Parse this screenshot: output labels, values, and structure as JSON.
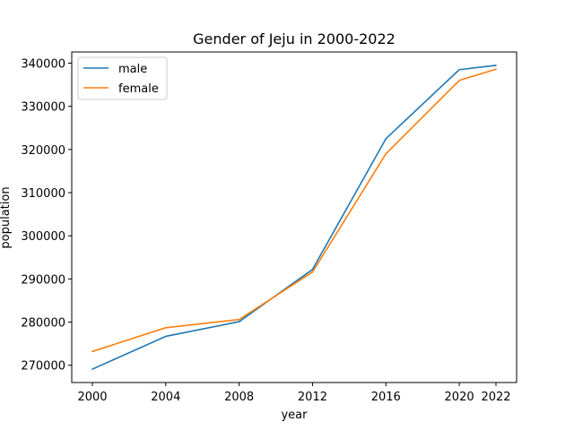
{
  "chart_data": {
    "type": "line",
    "title": "Gender of Jeju in 2000-2022",
    "xlabel": "year",
    "ylabel": "population",
    "x": [
      "2000",
      "2004",
      "2008",
      "2012",
      "2016",
      "2020",
      "2022"
    ],
    "series": [
      {
        "name": "male",
        "color": "#1f77b4",
        "values": [
          269100,
          276700,
          280100,
          292200,
          322500,
          338500,
          339500
        ]
      },
      {
        "name": "female",
        "color": "#ff7f0e",
        "values": [
          273200,
          278700,
          280600,
          291600,
          319000,
          336000,
          338600
        ]
      }
    ],
    "yticks": [
      270000,
      280000,
      290000,
      300000,
      310000,
      320000,
      330000,
      340000
    ],
    "ylim": [
      266000,
      342600
    ],
    "grid": false,
    "legend": "top-left"
  }
}
